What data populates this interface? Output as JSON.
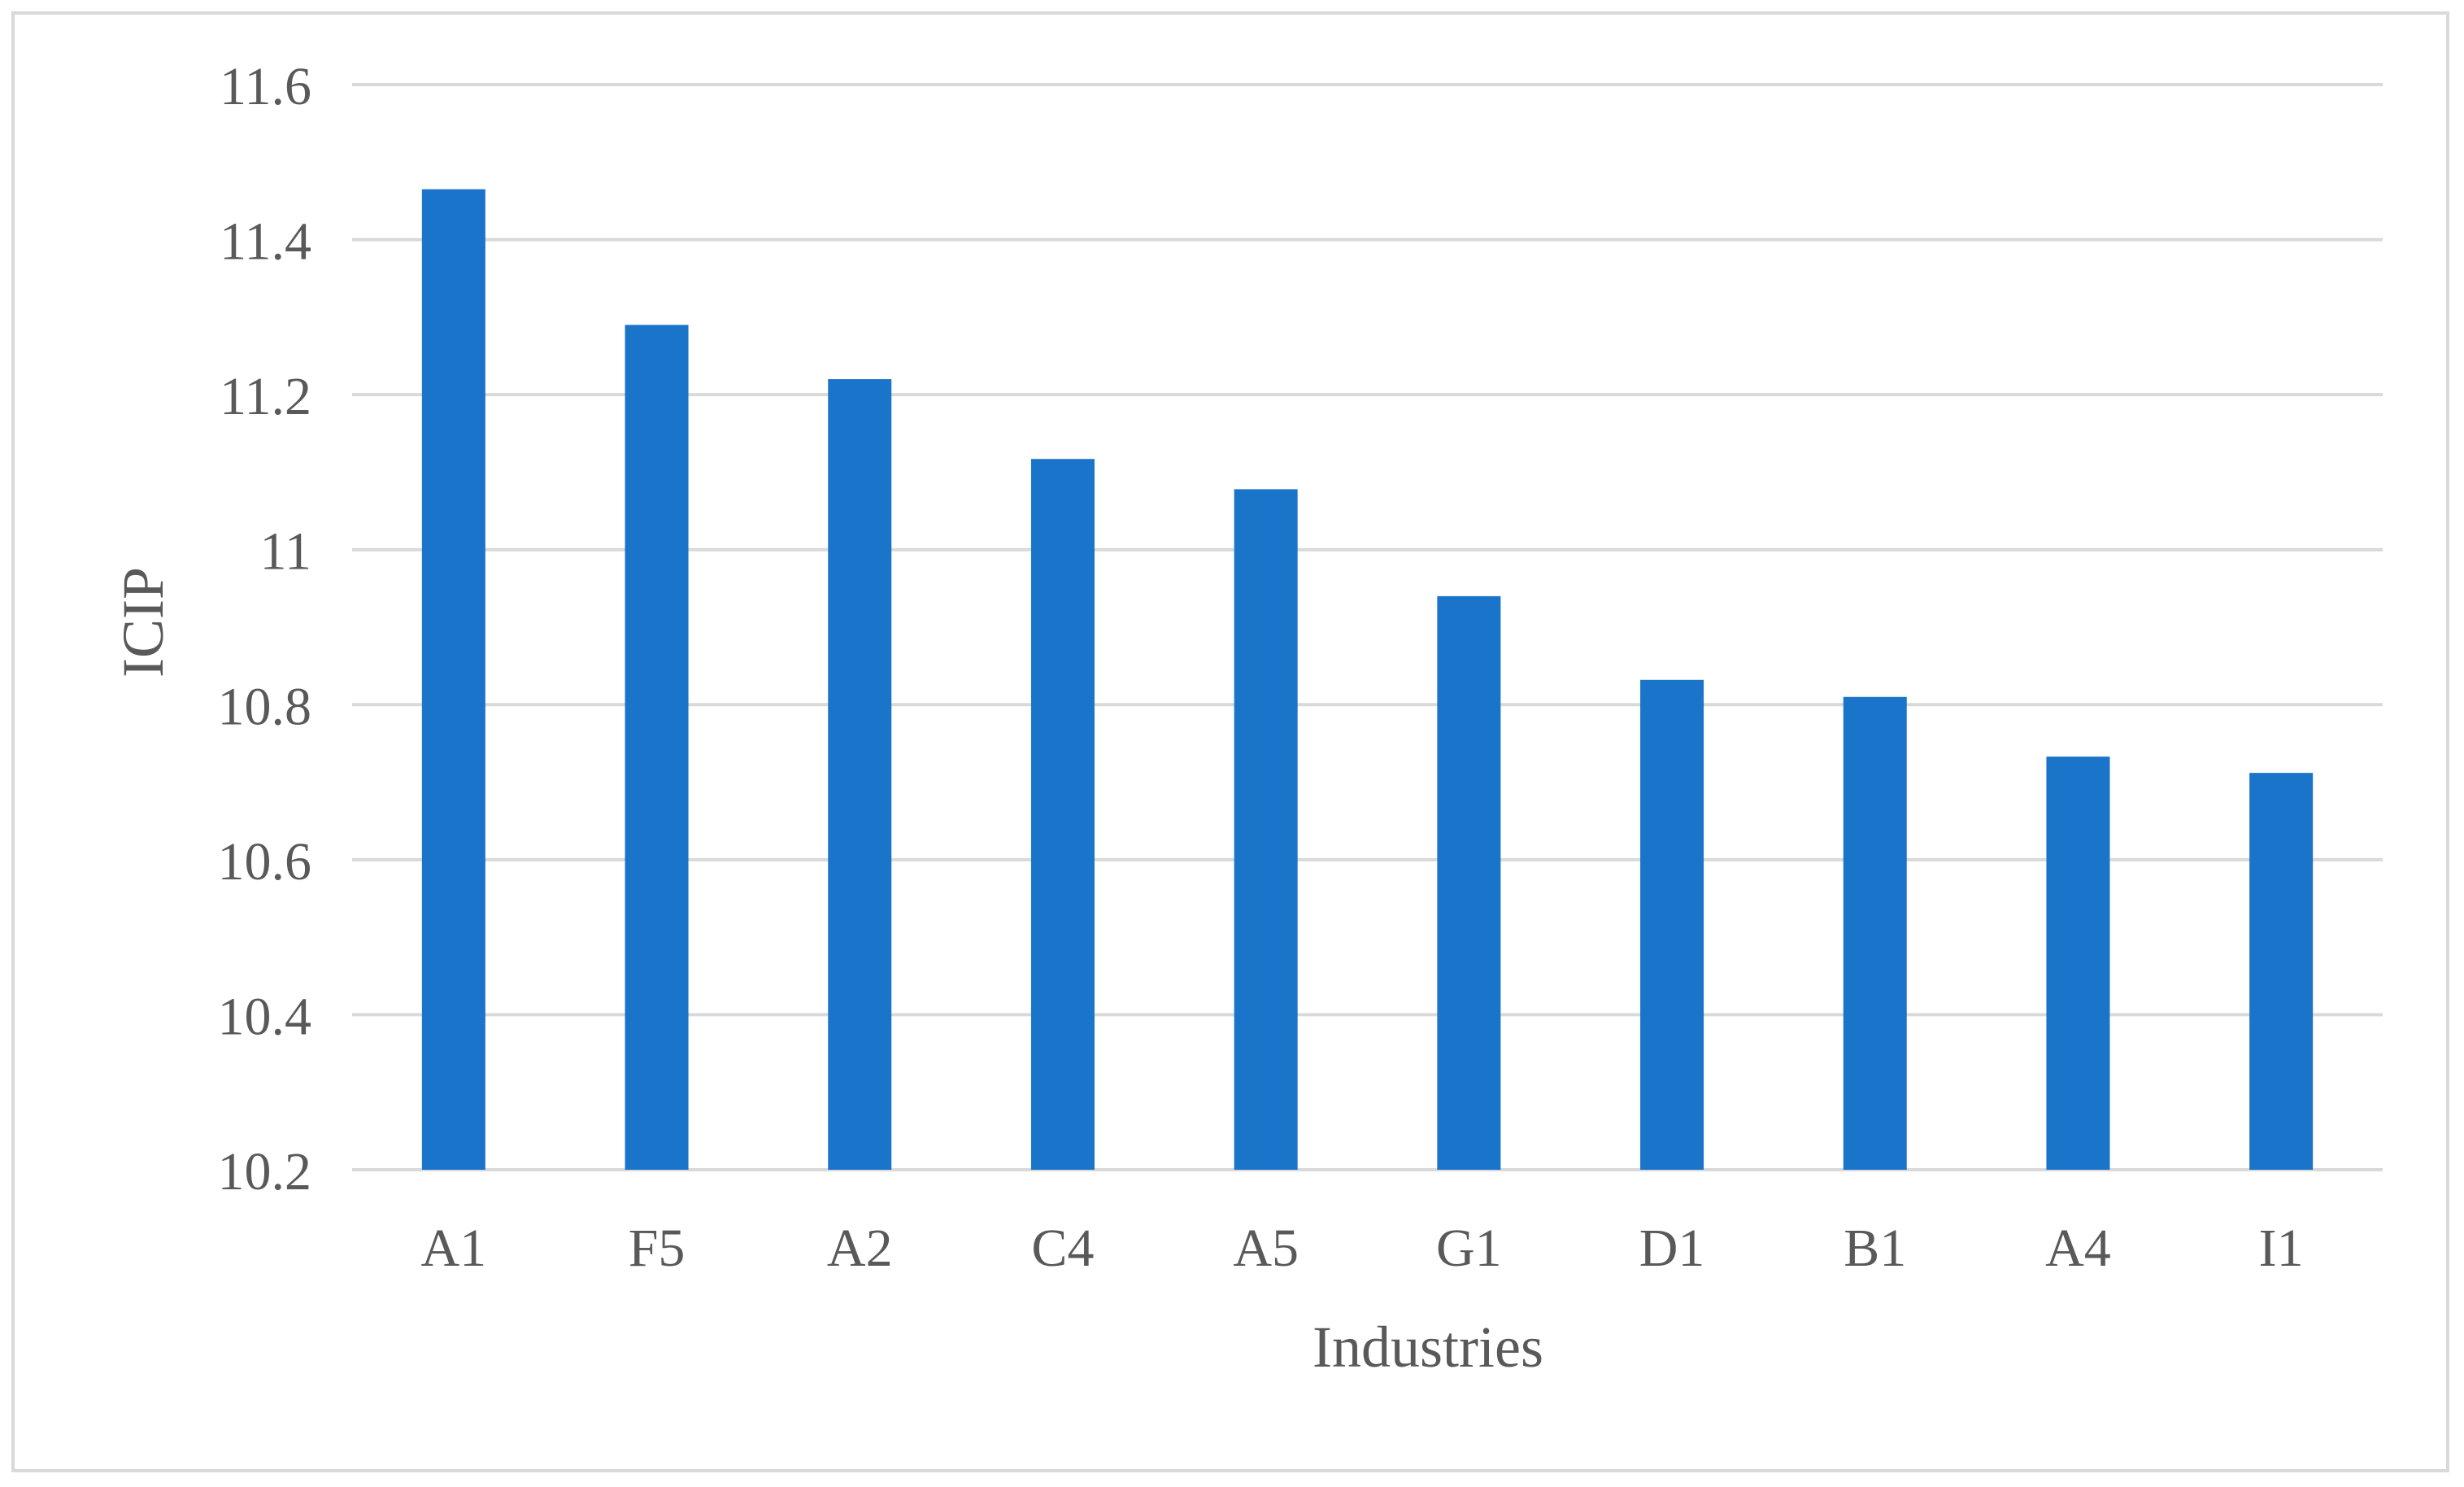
{
  "chart_data": {
    "type": "bar",
    "title": "",
    "xlabel": "Industries",
    "ylabel": "ICIP",
    "categories": [
      "A1",
      "F5",
      "A2",
      "C4",
      "A5",
      "G1",
      "D1",
      "B1",
      "A4",
      "I1"
    ],
    "series": [
      {
        "values": [
          11.465,
          11.29,
          11.22,
          11.117,
          11.078,
          10.94,
          10.832,
          10.81,
          10.733,
          10.712
        ]
      }
    ],
    "ylim": [
      10.2,
      11.6
    ],
    "yticks": [
      "10.2",
      "10.4",
      "10.6",
      "10.8",
      "11",
      "11.2",
      "11.4",
      "11.6"
    ],
    "grid": true,
    "legend": "none",
    "colors": {
      "bar": "#1a74c9",
      "grid": "#d9d9d9",
      "text": "#595959",
      "frame": "#d9d9d9"
    }
  }
}
